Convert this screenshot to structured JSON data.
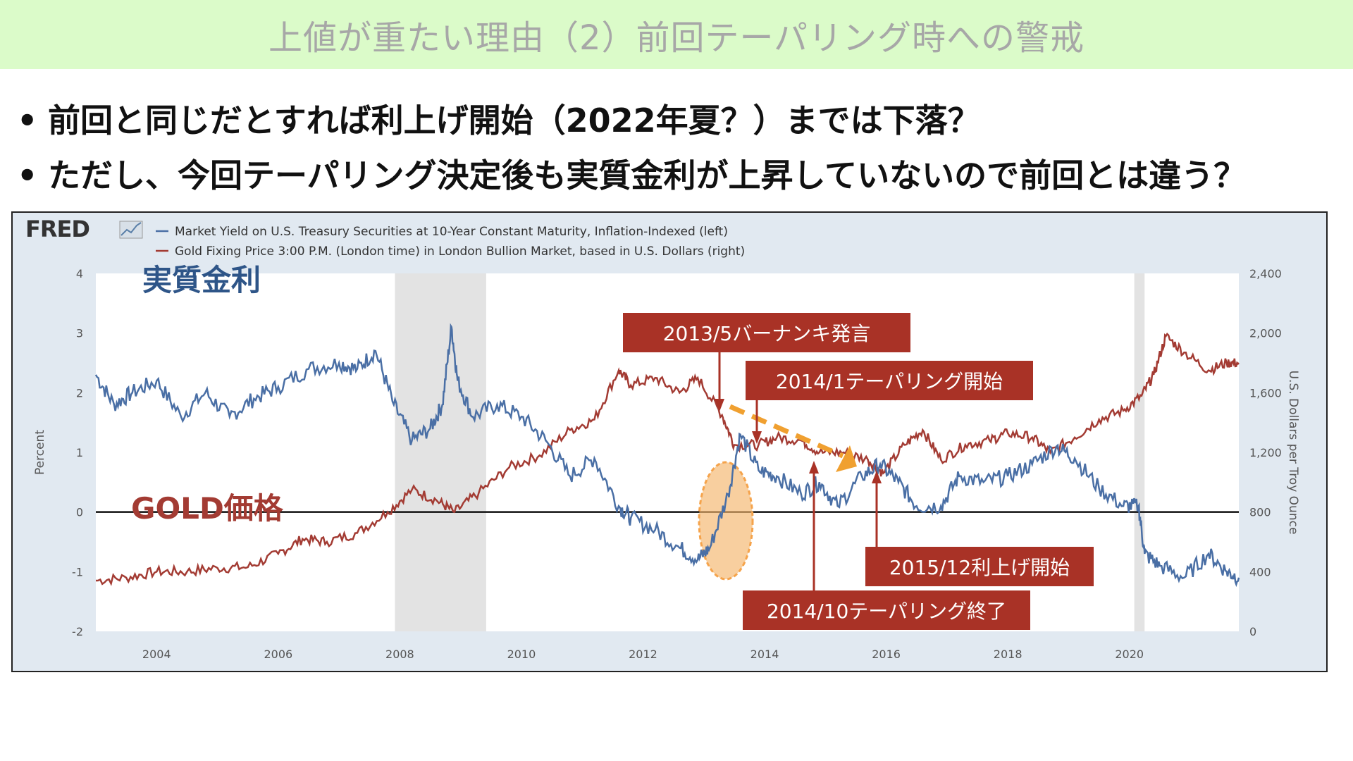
{
  "slide": {
    "title": "上値が重たい理由（2）前回テーパリング時への警戒",
    "bullets": [
      "前回と同じだとすれば利上げ開始（2022年夏？）までは下落？",
      "ただし、今回テーパリング決定後も実質金利が上昇していないので前回とは違う？"
    ],
    "bullet_symbol": "•"
  },
  "fred": {
    "logo": "FRED",
    "logo_icon": "line-chart-icon"
  },
  "colors": {
    "real_rate": "#4a6fa5",
    "gold": "#a33b33",
    "callout": "#a93226",
    "arrow": "#f0a030",
    "highlight": "#f5b56b"
  },
  "annotations": {
    "real_rate_label": "実質金利",
    "gold_label": "GOLD価格",
    "notes": [
      "2013/5バーナンキ発言",
      "2014/1テーパリング開始",
      "2015/12利上げ開始",
      "2014/10テーパリング終了"
    ]
  },
  "chart_data": {
    "type": "line",
    "left_axis": {
      "label": "Percent",
      "ylim": [
        -2,
        4
      ],
      "ticks": [
        "4",
        "3",
        "2",
        "1",
        "0",
        "-1",
        "-2"
      ]
    },
    "right_axis": {
      "label": "U.S. Dollars per Troy Ounce",
      "ylim": [
        0,
        2400
      ],
      "ticks": [
        "2,400",
        "2,000",
        "1,600",
        "1,200",
        "800",
        "400",
        "0"
      ]
    },
    "x_axis": {
      "range": [
        2003.0,
        2021.8
      ],
      "ticks": [
        "2004",
        "2006",
        "2008",
        "2010",
        "2012",
        "2014",
        "2016",
        "2018",
        "2020"
      ]
    },
    "recessions": [
      [
        2007.92,
        2009.42
      ],
      [
        2020.08,
        2020.25
      ]
    ],
    "zero_line": 0,
    "series": [
      {
        "name": "Market Yield on U.S. Treasury Securities at 10-Year Constant Maturity, Inflation-Indexed (left)",
        "axis": "left",
        "x": [
          2003.0,
          2003.3,
          2003.6,
          2004.0,
          2004.4,
          2004.8,
          2005.2,
          2005.6,
          2006.0,
          2006.5,
          2007.0,
          2007.3,
          2007.6,
          2007.9,
          2008.2,
          2008.5,
          2008.7,
          2008.85,
          2008.95,
          2009.2,
          2009.6,
          2010.0,
          2010.4,
          2010.8,
          2011.2,
          2011.6,
          2011.8,
          2012.2,
          2012.6,
          2012.9,
          2013.1,
          2013.4,
          2013.6,
          2013.9,
          2014.2,
          2014.6,
          2014.9,
          2015.2,
          2015.6,
          2015.9,
          2016.2,
          2016.5,
          2016.9,
          2017.2,
          2017.6,
          2018.0,
          2018.4,
          2018.8,
          2019.1,
          2019.5,
          2019.9,
          2020.15,
          2020.25,
          2020.5,
          2020.9,
          2021.3,
          2021.6,
          2021.8
        ],
        "y": [
          2.3,
          1.8,
          2.0,
          2.2,
          1.6,
          2.0,
          1.6,
          1.9,
          2.1,
          2.4,
          2.5,
          2.4,
          2.7,
          1.8,
          1.2,
          1.4,
          1.8,
          3.1,
          2.2,
          1.6,
          1.8,
          1.6,
          1.2,
          0.6,
          0.9,
          0.1,
          -0.1,
          -0.3,
          -0.6,
          -0.8,
          -0.6,
          0.3,
          1.3,
          0.7,
          0.6,
          0.3,
          0.5,
          0.1,
          0.6,
          0.8,
          0.5,
          0.1,
          0.1,
          0.6,
          0.5,
          0.6,
          0.8,
          1.1,
          0.9,
          0.4,
          0.1,
          0.1,
          -0.7,
          -0.9,
          -1.1,
          -0.7,
          -1.0,
          -1.1
        ]
      },
      {
        "name": "Gold Fixing Price 3:00 P.M. (London time) in London Bullion Market, based in U.S. Dollars (right)",
        "axis": "right",
        "x": [
          2003.0,
          2003.5,
          2004.0,
          2004.5,
          2005.0,
          2005.5,
          2006.0,
          2006.4,
          2006.8,
          2007.3,
          2007.8,
          2008.2,
          2008.6,
          2008.9,
          2009.3,
          2009.8,
          2010.3,
          2010.8,
          2011.2,
          2011.6,
          2011.8,
          2012.2,
          2012.6,
          2012.9,
          2013.3,
          2013.5,
          2013.9,
          2014.2,
          2014.6,
          2014.9,
          2015.3,
          2015.7,
          2015.95,
          2016.3,
          2016.6,
          2016.9,
          2017.3,
          2017.7,
          2018.0,
          2018.4,
          2018.7,
          2019.1,
          2019.5,
          2019.9,
          2020.2,
          2020.4,
          2020.6,
          2020.9,
          2021.3,
          2021.6,
          2021.8
        ],
        "y": [
          340,
          360,
          400,
          400,
          425,
          430,
          520,
          620,
          600,
          660,
          800,
          950,
          880,
          800,
          930,
          1100,
          1180,
          1350,
          1420,
          1750,
          1650,
          1700,
          1600,
          1700,
          1450,
          1250,
          1250,
          1300,
          1280,
          1200,
          1200,
          1150,
          1060,
          1250,
          1350,
          1150,
          1250,
          1280,
          1330,
          1300,
          1200,
          1300,
          1420,
          1480,
          1580,
          1720,
          1980,
          1870,
          1750,
          1800,
          1800
        ]
      }
    ]
  }
}
